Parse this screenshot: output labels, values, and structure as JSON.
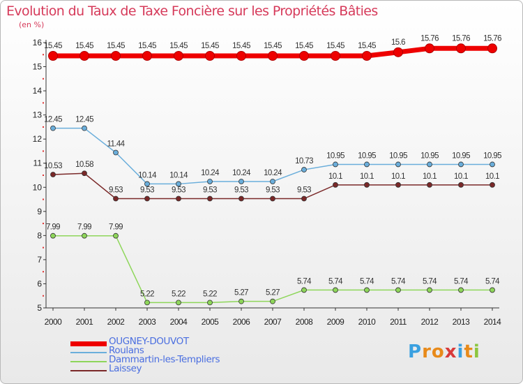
{
  "chart_data": {
    "type": "line",
    "title": "Evolution du Taux de Taxe Foncière sur les Propriétés Bâties",
    "ylabel": "(en %)",
    "xlabel": "",
    "ylim": [
      5,
      16
    ],
    "yticks": [
      5,
      6,
      7,
      8,
      9,
      10,
      11,
      12,
      13,
      14,
      15,
      16
    ],
    "categories": [
      "2000",
      "2001",
      "2002",
      "2003",
      "2004",
      "2005",
      "2006",
      "2007",
      "2008",
      "2009",
      "2010",
      "2011",
      "2012",
      "2013",
      "2014"
    ],
    "series": [
      {
        "name": "OUGNEY-DOUVOT",
        "color": "#ee0000",
        "emphasis": true,
        "values": [
          15.45,
          15.45,
          15.45,
          15.45,
          15.45,
          15.45,
          15.45,
          15.45,
          15.45,
          15.45,
          15.45,
          15.6,
          15.76,
          15.76,
          15.76
        ]
      },
      {
        "name": "Roulans",
        "color": "#6aaedb",
        "emphasis": false,
        "values": [
          12.45,
          12.45,
          11.44,
          10.14,
          10.14,
          10.24,
          10.24,
          10.24,
          10.73,
          10.95,
          10.95,
          10.95,
          10.95,
          10.95,
          10.95
        ]
      },
      {
        "name": "Dammartin-les-Templiers",
        "color": "#8ed65a",
        "emphasis": false,
        "values": [
          7.99,
          7.99,
          7.99,
          5.22,
          5.22,
          5.22,
          5.27,
          5.27,
          5.74,
          5.74,
          5.74,
          5.74,
          5.74,
          5.74,
          5.74
        ]
      },
      {
        "name": "Laissey",
        "color": "#7a2828",
        "emphasis": false,
        "values": [
          10.53,
          10.58,
          9.53,
          9.53,
          9.53,
          9.53,
          9.53,
          9.53,
          9.53,
          10.1,
          10.1,
          10.1,
          10.1,
          10.1,
          10.1
        ]
      }
    ],
    "legend_position": "bottom-left"
  },
  "branding": {
    "logo_letters": [
      "P",
      "r",
      "o",
      "x",
      "i",
      "t",
      "i"
    ],
    "logo_colors": [
      "#3aa0e0",
      "#e88a1a",
      "#e88a1a",
      "#d83a3a",
      "#3aa0e0",
      "#e88a1a",
      "#8cc63f"
    ]
  }
}
